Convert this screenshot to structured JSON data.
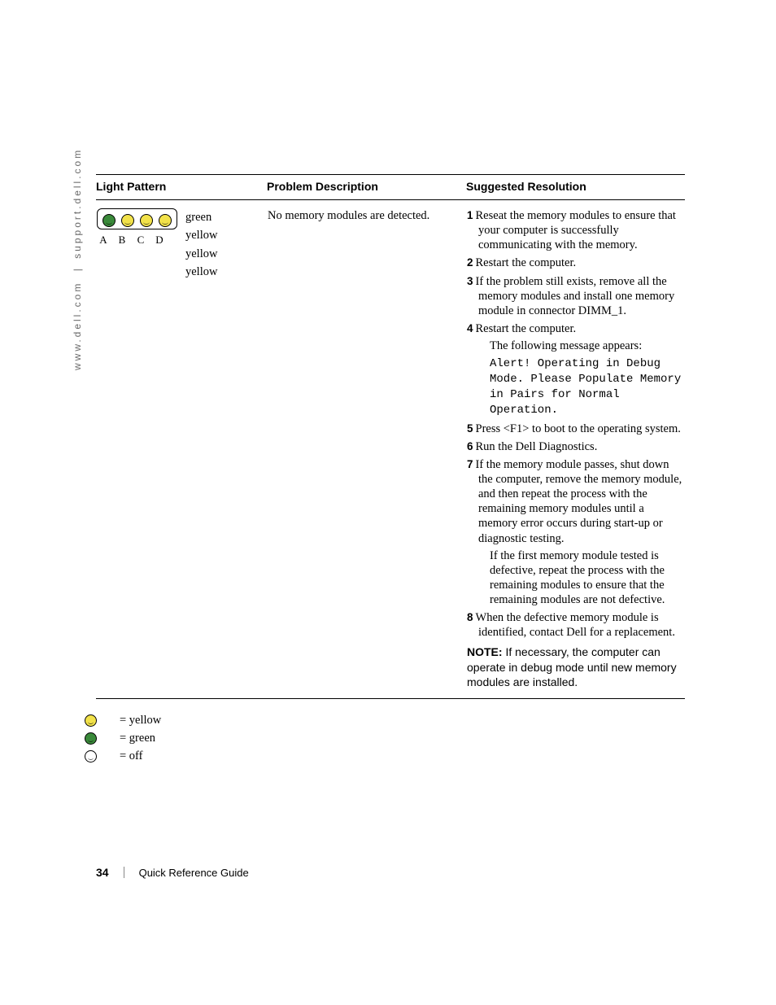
{
  "side_url": {
    "left": "www.dell.com",
    "sep": "|",
    "right": "support.dell.com"
  },
  "headers": {
    "light_pattern": "Light Pattern",
    "problem_desc": "Problem Description",
    "suggested_res": "Suggested Resolution"
  },
  "light_pattern": {
    "labels": [
      "A",
      "B",
      "C",
      "D"
    ],
    "leds": [
      "green",
      "yellow",
      "yellow",
      "yellow"
    ],
    "color_names": [
      "green",
      "yellow",
      "yellow",
      "yellow"
    ],
    "led_colors": {
      "green": "#3a8a3a",
      "yellow": "#f2e24a",
      "off": "#ffffff"
    }
  },
  "problem": "No memory modules are detected.",
  "resolution": {
    "steps": [
      {
        "n": "1",
        "text": "Reseat the memory modules to ensure that your computer is successfully communicating with the memory."
      },
      {
        "n": "2",
        "text": "Restart the computer."
      },
      {
        "n": "3",
        "text": "If the problem still exists, remove all the memory modules and install one memory module in connector DIMM_1."
      },
      {
        "n": "4",
        "text": "Restart the computer.",
        "sub": "The following message appears:",
        "mono": "Alert! Operating in Debug Mode. Please Populate Memory in Pairs for Normal Operation."
      },
      {
        "n": "5",
        "text": "Press <F1> to boot to the operating system."
      },
      {
        "n": "6",
        "text": "Run the Dell Diagnostics."
      },
      {
        "n": "7",
        "text": "If the memory module passes, shut down the computer, remove the memory module, and then repeat the process with the remaining memory modules until a memory error occurs during start-up or diagnostic testing.",
        "sub": "If the first memory module tested is defective, repeat the process with the remaining modules to ensure that the remaining modules are not defective."
      },
      {
        "n": "8",
        "text": "When the defective memory module is identified, contact Dell for a replacement."
      }
    ],
    "note_label": "NOTE:",
    "note_text": "If necessary, the computer can operate in debug mode until new memory modules are installed."
  },
  "legend": [
    {
      "type": "yellow",
      "text": "= yellow"
    },
    {
      "type": "green",
      "text": "= green"
    },
    {
      "type": "off",
      "text": "= off"
    }
  ],
  "footer": {
    "page": "34",
    "title": "Quick Reference Guide"
  }
}
